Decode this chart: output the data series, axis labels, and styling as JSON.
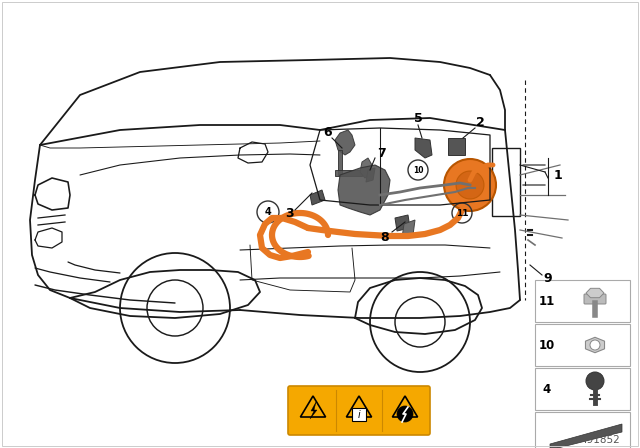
{
  "bg_color": "#ffffff",
  "car_color": "#1a1a1a",
  "gray_parts": "#707070",
  "dark_gray": "#555555",
  "orange": "#E87722",
  "light_line": "#888888",
  "diagram_id": "491852",
  "warning_yellow": "#F5A800"
}
